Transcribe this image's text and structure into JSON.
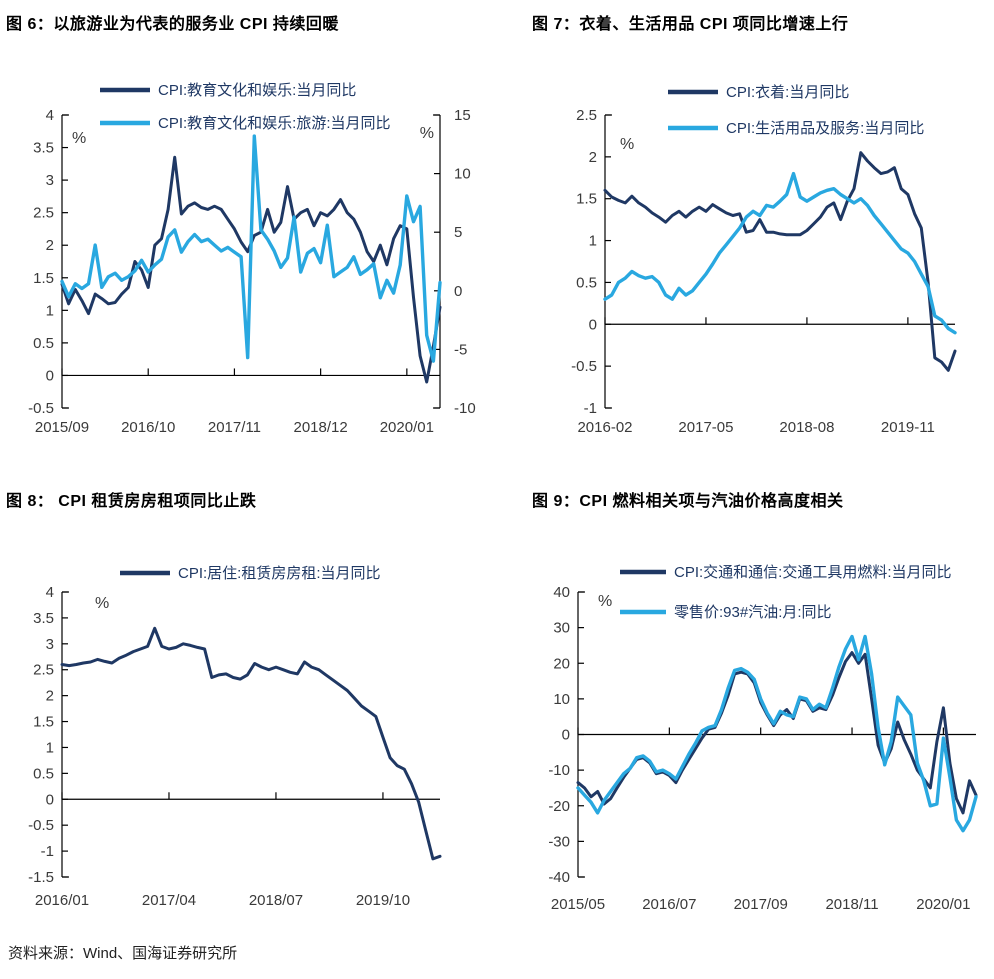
{
  "page": {
    "source_note": "资料来源：Wind、国海证券研究所"
  },
  "colors": {
    "navy": "#1f3864",
    "sky": "#29a8e0",
    "axis_line": "#000000",
    "axis_text": "#3a3a3a",
    "legend_text": "#1f3864"
  },
  "chart_data": [
    {
      "id": "fig6",
      "type": "line",
      "title": "图 6：以旅游业为代表的服务业 CPI 持续回暖",
      "unit_left": "%",
      "unit_right": "%",
      "left_axis": {
        "min": -0.5,
        "max": 4,
        "ticks": [
          4,
          3.5,
          3,
          2.5,
          2,
          1.5,
          1,
          0.5,
          0,
          -0.5
        ]
      },
      "right_axis": {
        "min": -10,
        "max": 15,
        "ticks": [
          15,
          10,
          5,
          0,
          -5,
          -10
        ]
      },
      "x_tick_labels": [
        "2015/09",
        "2016/10",
        "2017/11",
        "2018/12",
        "2020/01"
      ],
      "x_tick_indices": [
        0,
        13,
        26,
        39,
        52
      ],
      "series": [
        {
          "name": "CPI:教育文化和娱乐:当月同比",
          "color": "navy",
          "axis": "left",
          "values": [
            1.4,
            1.1,
            1.32,
            1.15,
            0.95,
            1.25,
            1.18,
            1.1,
            1.12,
            1.25,
            1.35,
            1.75,
            1.62,
            1.35,
            2.0,
            2.1,
            2.55,
            3.35,
            2.48,
            2.6,
            2.65,
            2.58,
            2.55,
            2.6,
            2.55,
            2.4,
            2.25,
            2.05,
            1.9,
            2.15,
            2.2,
            2.55,
            2.2,
            2.35,
            2.9,
            2.4,
            2.5,
            2.55,
            2.3,
            2.5,
            2.45,
            2.55,
            2.7,
            2.5,
            2.4,
            2.2,
            1.9,
            1.75,
            2.0,
            1.7,
            2.1,
            2.3,
            2.25,
            1.2,
            0.3,
            -0.1,
            0.45,
            1.05
          ]
        },
        {
          "name": "CPI:教育文化和娱乐:旅游:当月同比",
          "color": "sky",
          "axis": "right",
          "values": [
            0.8,
            -0.5,
            0.6,
            0.2,
            0.6,
            3.9,
            0.3,
            1.2,
            1.5,
            0.9,
            1.2,
            1.7,
            2.6,
            1.6,
            2.2,
            2.7,
            4.6,
            5.2,
            3.3,
            4.2,
            4.8,
            4.2,
            4.4,
            3.9,
            3.4,
            3.7,
            3.3,
            2.9,
            -5.7,
            13.2,
            5.2,
            4.4,
            3.4,
            2.0,
            2.8,
            6.3,
            1.6,
            3.2,
            3.6,
            2.4,
            5.6,
            1.2,
            1.6,
            2.0,
            2.9,
            1.4,
            1.8,
            2.3,
            -0.6,
            0.9,
            -0.2,
            2.2,
            8.1,
            5.9,
            7.2,
            -3.8,
            -6.0,
            0.7
          ]
        }
      ]
    },
    {
      "id": "fig7",
      "type": "line",
      "title": "图 7：衣着、生活用品 CPI 项同比增速上行",
      "unit_left": "%",
      "left_axis": {
        "min": -1,
        "max": 2.5,
        "ticks": [
          2.5,
          2,
          1.5,
          1,
          0.5,
          0,
          -0.5,
          -1
        ]
      },
      "x_tick_labels": [
        "2016-02",
        "2017-05",
        "2018-08",
        "2019-11"
      ],
      "x_tick_indices": [
        0,
        15,
        30,
        45
      ],
      "series": [
        {
          "name": "CPI:衣着:当月同比",
          "color": "navy",
          "axis": "left",
          "values": [
            1.6,
            1.52,
            1.48,
            1.45,
            1.53,
            1.45,
            1.4,
            1.33,
            1.28,
            1.22,
            1.3,
            1.35,
            1.28,
            1.35,
            1.4,
            1.35,
            1.43,
            1.38,
            1.33,
            1.3,
            1.32,
            1.1,
            1.12,
            1.25,
            1.1,
            1.1,
            1.08,
            1.07,
            1.07,
            1.07,
            1.12,
            1.2,
            1.28,
            1.4,
            1.45,
            1.25,
            1.47,
            1.62,
            2.05,
            1.95,
            1.87,
            1.8,
            1.82,
            1.87,
            1.62,
            1.55,
            1.32,
            1.15,
            0.5,
            -0.4,
            -0.45,
            -0.55,
            -0.32
          ]
        },
        {
          "name": "CPI:生活用品及服务:当月同比",
          "color": "sky",
          "axis": "left",
          "values": [
            0.3,
            0.35,
            0.5,
            0.55,
            0.63,
            0.58,
            0.55,
            0.57,
            0.5,
            0.35,
            0.3,
            0.43,
            0.35,
            0.4,
            0.5,
            0.6,
            0.72,
            0.85,
            0.95,
            1.05,
            1.15,
            1.28,
            1.35,
            1.3,
            1.42,
            1.4,
            1.47,
            1.55,
            1.8,
            1.52,
            1.47,
            1.52,
            1.57,
            1.6,
            1.62,
            1.55,
            1.5,
            1.45,
            1.5,
            1.42,
            1.3,
            1.2,
            1.1,
            1.0,
            0.9,
            0.85,
            0.75,
            0.6,
            0.45,
            0.1,
            0.05,
            -0.05,
            -0.1
          ]
        }
      ]
    },
    {
      "id": "fig8",
      "type": "line",
      "title": "图 8：  CPI 租赁房房租项同比止跌",
      "unit_left": "%",
      "left_axis": {
        "min": -1.5,
        "max": 4,
        "ticks": [
          4,
          3.5,
          3,
          2.5,
          2,
          1.5,
          1,
          0.5,
          0,
          -0.5,
          -1,
          -1.5
        ]
      },
      "x_tick_labels": [
        "2016/01",
        "2017/04",
        "2018/07",
        "2019/10"
      ],
      "x_tick_indices": [
        0,
        15,
        30,
        45
      ],
      "series": [
        {
          "name": "CPI:居住:租赁房房租:当月同比",
          "color": "navy",
          "axis": "left",
          "values": [
            2.6,
            2.58,
            2.6,
            2.63,
            2.65,
            2.7,
            2.66,
            2.63,
            2.72,
            2.78,
            2.85,
            2.9,
            2.95,
            3.3,
            2.95,
            2.9,
            2.93,
            3.0,
            2.97,
            2.93,
            2.9,
            2.35,
            2.4,
            2.42,
            2.35,
            2.32,
            2.4,
            2.62,
            2.55,
            2.5,
            2.55,
            2.5,
            2.45,
            2.42,
            2.65,
            2.55,
            2.5,
            2.4,
            2.3,
            2.2,
            2.1,
            1.95,
            1.8,
            1.7,
            1.6,
            1.2,
            0.8,
            0.65,
            0.58,
            0.3,
            -0.05,
            -0.6,
            -1.15,
            -1.1
          ]
        }
      ]
    },
    {
      "id": "fig9",
      "type": "line",
      "title": "图 9：CPI 燃料相关项与汽油价格高度相关",
      "unit_left": "%",
      "left_axis": {
        "min": -40,
        "max": 40,
        "ticks": [
          40,
          30,
          20,
          10,
          0,
          -10,
          -20,
          -30,
          -40
        ]
      },
      "x_tick_labels": [
        "2015/05",
        "2016/07",
        "2017/09",
        "2018/11",
        "2020/01"
      ],
      "x_tick_indices": [
        0,
        14,
        28,
        42,
        56
      ],
      "series": [
        {
          "name": "CPI:交通和通信:交通工具用燃料:当月同比",
          "color": "navy",
          "axis": "left",
          "values": [
            -13.5,
            -15,
            -17.5,
            -16,
            -19.5,
            -18,
            -15,
            -12,
            -9.5,
            -7,
            -6.5,
            -8,
            -11,
            -10.5,
            -11.5,
            -13.5,
            -10,
            -7,
            -4,
            -1,
            1.5,
            2,
            6,
            11,
            17,
            17.5,
            17,
            14.5,
            9,
            5.5,
            2.5,
            5.5,
            7,
            4.5,
            10,
            9.5,
            6.5,
            7.5,
            7,
            11,
            16,
            20.5,
            23,
            20,
            22.5,
            10,
            -3,
            -8,
            -4,
            3.5,
            -1.5,
            -5.5,
            -10,
            -12.5,
            -15,
            -2,
            7.5,
            -8,
            -18,
            -22,
            -13,
            -17
          ]
        },
        {
          "name": "零售价:93#汽油:月:同比",
          "color": "sky",
          "axis": "left",
          "values": [
            -15,
            -17,
            -19,
            -22,
            -18.5,
            -16,
            -13.5,
            -11,
            -9.5,
            -6.5,
            -6,
            -7.5,
            -10.5,
            -10,
            -11,
            -12.5,
            -9,
            -5.5,
            -2.5,
            1,
            2,
            2.5,
            7,
            13,
            18,
            18.5,
            17.5,
            15.5,
            10,
            6,
            3,
            6.5,
            5.5,
            5,
            10.5,
            10,
            7,
            8.5,
            7.5,
            13,
            19,
            24,
            27.5,
            21,
            27.5,
            17,
            2,
            -8.5,
            -2,
            10.5,
            8,
            5.5,
            -8,
            -13,
            -20,
            -19.5,
            -1,
            -12,
            -24,
            -27,
            -24,
            -17.5
          ]
        }
      ]
    }
  ]
}
